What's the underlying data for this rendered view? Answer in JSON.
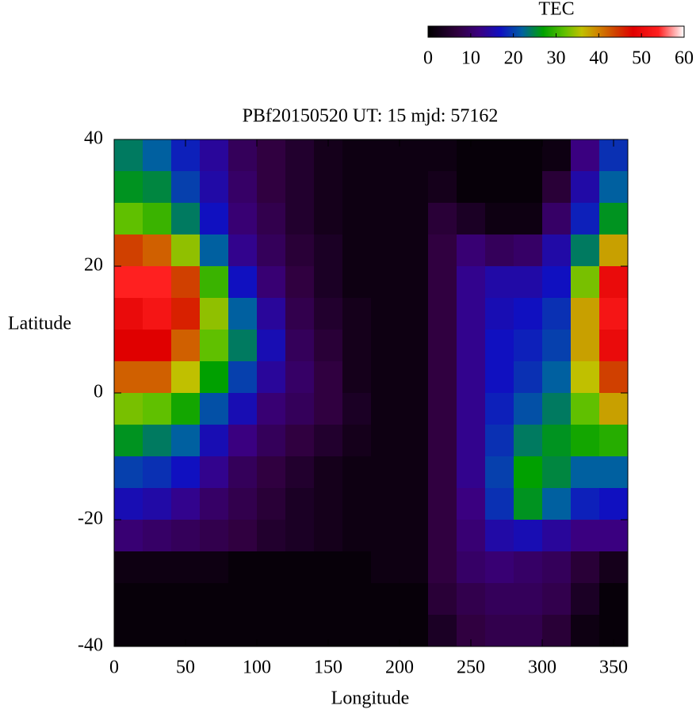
{
  "chart_data": {
    "type": "heatmap",
    "title": "PBf20150520  UT: 15  mjd: 57162",
    "x_label": "Longitude",
    "y_label": "Latitude",
    "colorbar_label": "TEC",
    "x": [
      10,
      30,
      50,
      70,
      90,
      110,
      130,
      150,
      170,
      190,
      210,
      230,
      250,
      270,
      290,
      310,
      330,
      350
    ],
    "y": [
      37.5,
      32.5,
      27.5,
      22.5,
      17.5,
      12.5,
      7.5,
      2.5,
      -2.5,
      -7.5,
      -12.5,
      -17.5,
      -22.5,
      -27.5,
      -32.5,
      -37.5
    ],
    "z": [
      [
        24,
        22,
        18,
        14,
        9,
        7,
        5,
        3,
        2,
        2,
        2,
        2,
        1,
        1,
        1,
        2,
        12,
        19
      ],
      [
        26,
        25,
        20,
        15,
        10,
        7,
        5,
        3,
        2,
        2,
        2,
        3,
        1,
        1,
        1,
        6,
        15,
        22
      ],
      [
        32,
        30,
        24,
        17,
        11,
        8,
        5,
        3,
        2,
        2,
        2,
        6,
        4,
        2,
        2,
        10,
        18,
        26
      ],
      [
        44,
        42,
        34,
        22,
        13,
        9,
        6,
        4,
        2,
        2,
        2,
        7,
        11,
        9,
        10,
        15,
        24,
        38
      ],
      [
        54,
        54,
        44,
        30,
        17,
        11,
        7,
        4,
        2,
        2,
        2,
        7,
        13,
        15,
        15,
        17,
        33,
        50
      ],
      [
        50,
        52,
        46,
        34,
        22,
        14,
        8,
        5,
        3,
        2,
        2,
        7,
        13,
        16,
        17,
        19,
        38,
        52
      ],
      [
        48,
        48,
        42,
        32,
        24,
        16,
        9,
        6,
        3,
        2,
        2,
        7,
        13,
        17,
        18,
        20,
        38,
        50
      ],
      [
        42,
        42,
        36,
        27,
        20,
        14,
        10,
        7,
        3,
        2,
        2,
        7,
        13,
        17,
        19,
        22,
        36,
        44
      ],
      [
        33,
        32,
        28,
        21,
        16,
        11,
        9,
        7,
        4,
        2,
        2,
        7,
        13,
        18,
        21,
        24,
        32,
        38
      ],
      [
        26,
        24,
        22,
        16,
        12,
        9,
        7,
        5,
        3,
        2,
        2,
        7,
        13,
        19,
        24,
        26,
        28,
        29
      ],
      [
        20,
        19,
        17,
        13,
        9,
        7,
        5,
        3,
        2,
        2,
        2,
        7,
        13,
        20,
        27,
        25,
        22,
        22
      ],
      [
        16,
        15,
        13,
        10,
        8,
        6,
        4,
        3,
        2,
        2,
        2,
        7,
        12,
        19,
        26,
        22,
        18,
        17
      ],
      [
        11,
        10,
        9,
        8,
        7,
        5,
        4,
        3,
        2,
        2,
        2,
        7,
        11,
        15,
        16,
        14,
        12,
        12
      ],
      [
        2,
        2,
        2,
        2,
        1,
        1,
        1,
        1,
        1,
        2,
        2,
        7,
        10,
        11,
        10,
        9,
        6,
        3
      ],
      [
        1,
        1,
        1,
        1,
        1,
        1,
        1,
        1,
        1,
        1,
        1,
        6,
        8,
        9,
        9,
        8,
        4,
        1
      ],
      [
        1,
        1,
        1,
        1,
        1,
        1,
        1,
        1,
        1,
        1,
        1,
        4,
        7,
        8,
        8,
        6,
        2,
        1
      ]
    ],
    "xlim": [
      0,
      360
    ],
    "ylim": [
      -40,
      40
    ],
    "xticks": [
      0,
      50,
      100,
      150,
      200,
      250,
      300,
      350
    ],
    "yticks": [
      -40,
      -20,
      0,
      20,
      40
    ],
    "zlim": [
      0,
      60
    ],
    "zticks": [
      0,
      10,
      20,
      30,
      40,
      50,
      60
    ],
    "colorscale": [
      {
        "value": 0,
        "color": "#000000"
      },
      {
        "value": 7,
        "color": "#300040"
      },
      {
        "value": 12,
        "color": "#3a0080"
      },
      {
        "value": 17,
        "color": "#1010c0"
      },
      {
        "value": 22,
        "color": "#0060a0"
      },
      {
        "value": 27,
        "color": "#00a000"
      },
      {
        "value": 32,
        "color": "#60c000"
      },
      {
        "value": 36,
        "color": "#c0c000"
      },
      {
        "value": 40,
        "color": "#d08000"
      },
      {
        "value": 44,
        "color": "#d04000"
      },
      {
        "value": 48,
        "color": "#e00000"
      },
      {
        "value": 54,
        "color": "#ff2020"
      },
      {
        "value": 60,
        "color": "#ffffff"
      }
    ]
  }
}
